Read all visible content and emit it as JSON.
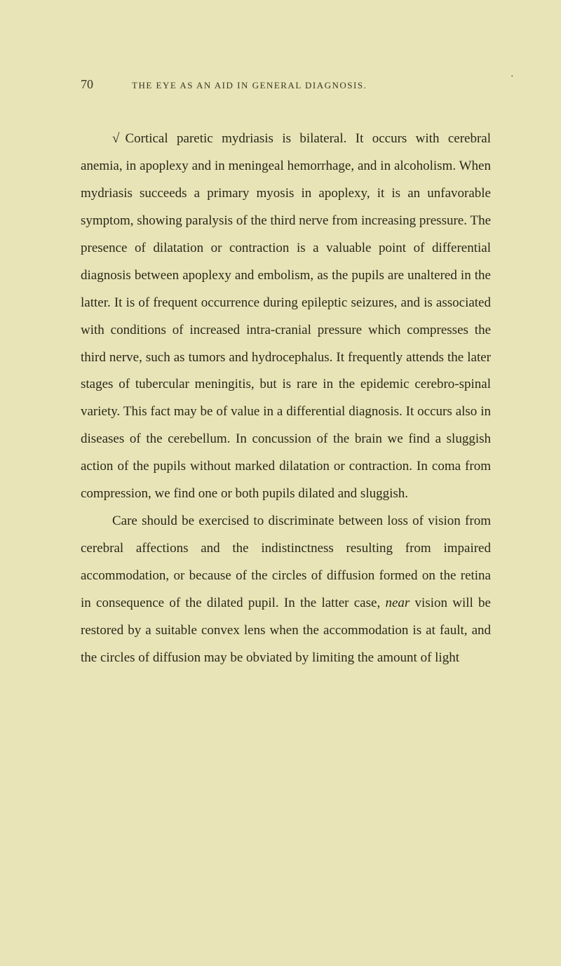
{
  "page": {
    "number": "70",
    "running_title": "THE EYE AS AN AID IN GENERAL DIAGNOSIS.",
    "background_color": "#e8e4b8",
    "text_color": "#2a2818",
    "header_color": "#3a3520",
    "body_font_size": 19,
    "header_font_size": 13,
    "page_number_font_size": 18,
    "line_height": 2.05
  },
  "content": {
    "check_mark": "√",
    "paragraph1_part1": "Cortical paretic mydriasis is bilateral. It occurs with cerebral anemia, in apoplexy and in meningeal hemorrhage, and in alcoholism. When mydriasis succeeds a primary myosis in apoplexy, it is an unfavorable symptom, showing paralysis of the third nerve from increasing pressure. The presence of dilatation or contraction is a valuable point of differential diagnosis between apoplexy and embolism, as the pupils are unaltered in the latter. It is of frequent occurrence during epileptic seizures, and is associated with conditions of increased intra-cranial pressure which compresses the third nerve, such as tumors and hydrocephalus. It frequently attends the later stages of tubercular meningitis, but is rare in the epidemic cerebro-spinal variety. This fact may be of value in a differential diagnosis. It occurs also in diseases of the cerebellum. In concussion of the brain we find a sluggish action of the pupils without marked dilatation or contraction. In coma from compression, we find one or both pupils dilated and sluggish.",
    "paragraph2_part1": "Care should be exercised to discriminate between loss of vision from cerebral affections and the indistinctness resulting from impaired accommodation, or because of the circles of diffusion formed on the retina in consequence of the dilated pupil. In the latter case, ",
    "paragraph2_italic": "near",
    "paragraph2_part2": " vision will be restored by a suitable convex lens when the accommodation is at fault, and the circles of diffusion may be obviated by limiting the amount of light"
  },
  "decoration": {
    "dot": "."
  }
}
